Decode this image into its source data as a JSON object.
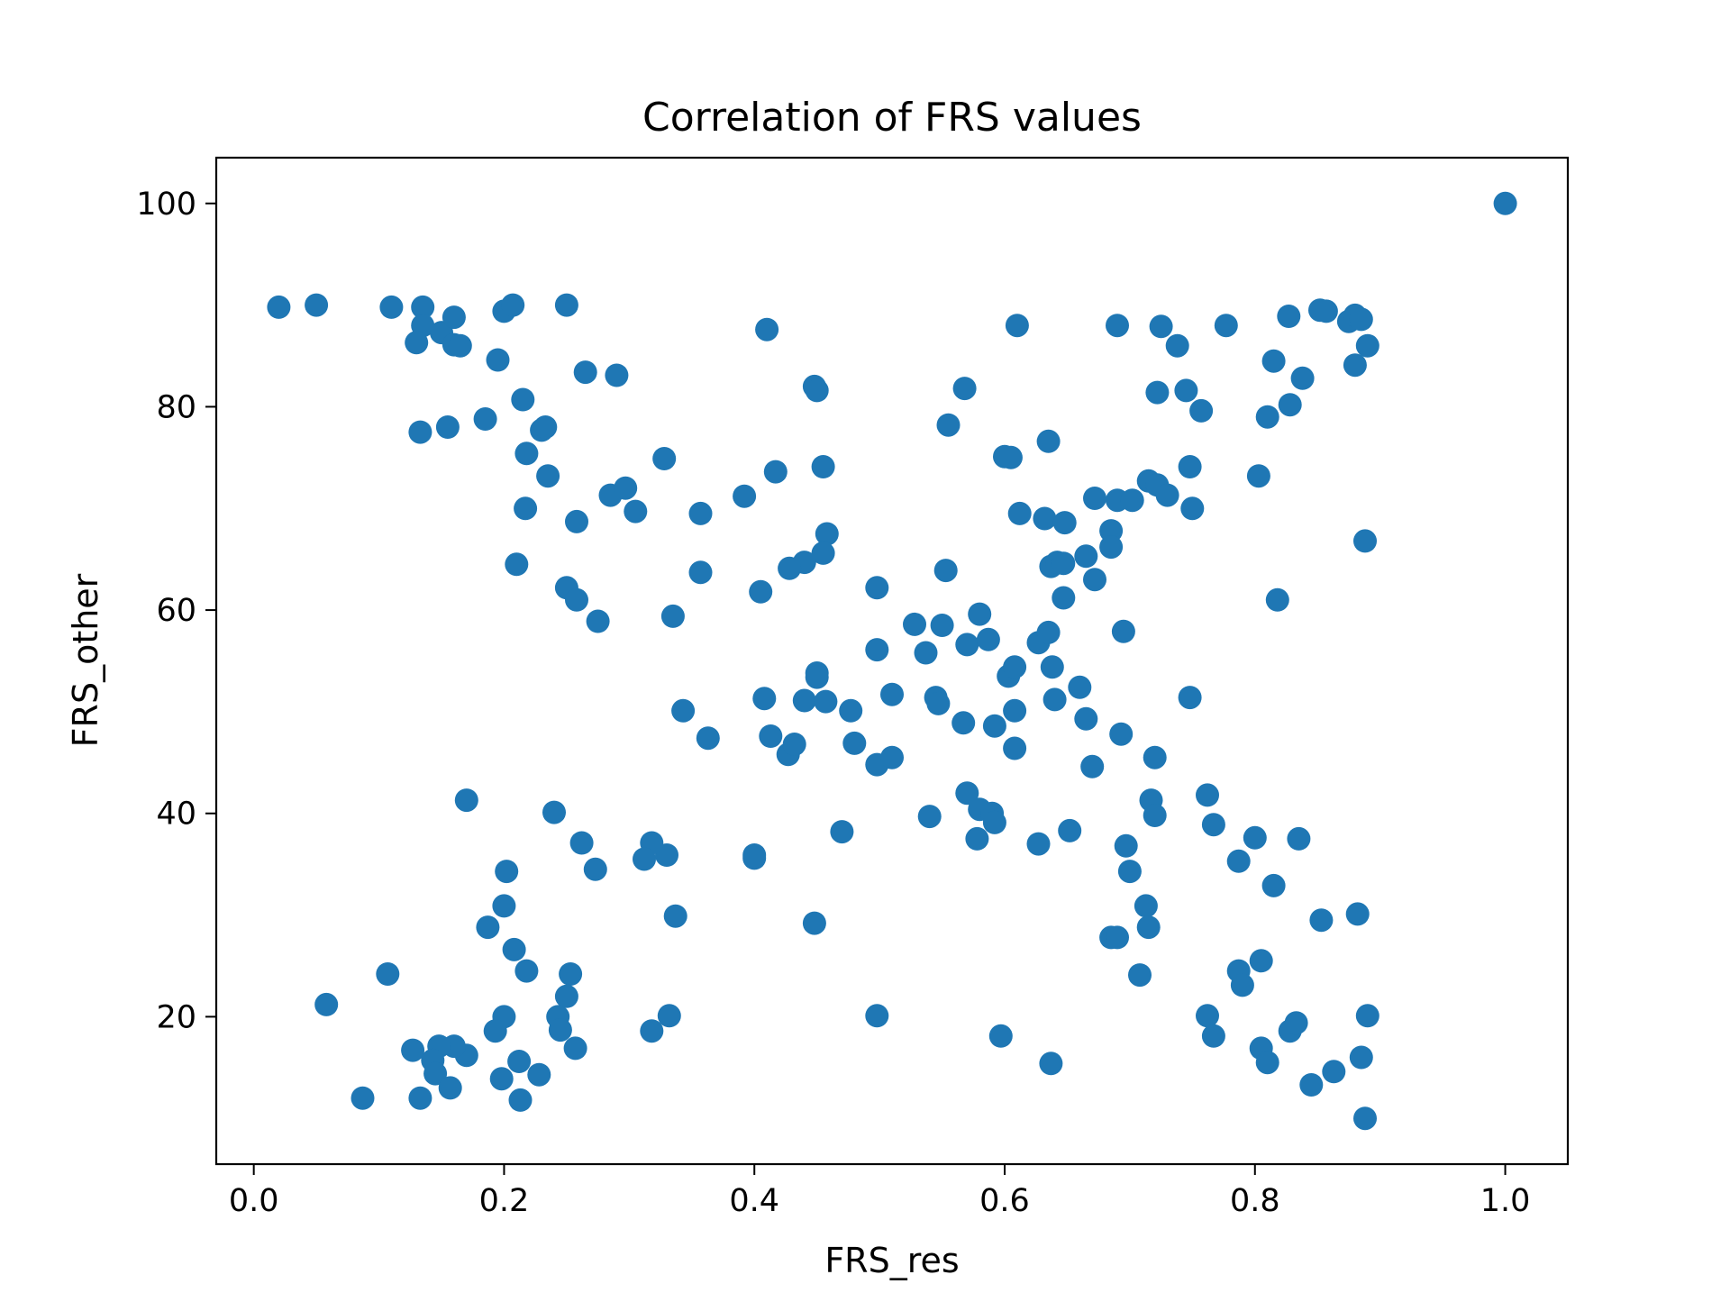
{
  "chart_data": {
    "type": "scatter",
    "title": "Correlation of FRS values",
    "xlabel": "FRS_res",
    "ylabel": "FRS_other",
    "xlim": [
      -0.03,
      1.05
    ],
    "ylim": [
      5.5,
      104.5
    ],
    "xticks": [
      "0.0",
      "0.2",
      "0.4",
      "0.6",
      "0.8",
      "1.0"
    ],
    "xtick_values": [
      0.0,
      0.2,
      0.4,
      0.6,
      0.8,
      1.0
    ],
    "yticks": [
      "20",
      "40",
      "60",
      "80",
      "100"
    ],
    "ytick_values": [
      20,
      40,
      60,
      80,
      100
    ],
    "grid": false,
    "legend": false,
    "marker_color": "#1f77b4",
    "points": [
      [
        0.02,
        89.8
      ],
      [
        0.05,
        90.0
      ],
      [
        0.11,
        89.8
      ],
      [
        0.135,
        89.8
      ],
      [
        0.135,
        88.0
      ],
      [
        0.15,
        87.3
      ],
      [
        0.16,
        88.8
      ],
      [
        0.13,
        86.3
      ],
      [
        0.16,
        86.1
      ],
      [
        0.165,
        86.0
      ],
      [
        0.2,
        89.4
      ],
      [
        0.207,
        90.0
      ],
      [
        0.25,
        90.0
      ],
      [
        0.195,
        84.6
      ],
      [
        0.265,
        83.4
      ],
      [
        0.29,
        83.1
      ],
      [
        0.133,
        77.5
      ],
      [
        0.155,
        78.0
      ],
      [
        0.185,
        78.8
      ],
      [
        0.215,
        80.7
      ],
      [
        0.23,
        77.7
      ],
      [
        0.233,
        78.0
      ],
      [
        0.218,
        75.4
      ],
      [
        0.235,
        73.2
      ],
      [
        0.217,
        70.0
      ],
      [
        0.21,
        64.5
      ],
      [
        0.258,
        68.7
      ],
      [
        0.285,
        71.3
      ],
      [
        0.297,
        72.0
      ],
      [
        0.305,
        69.7
      ],
      [
        0.328,
        74.9
      ],
      [
        0.25,
        62.2
      ],
      [
        0.258,
        61.0
      ],
      [
        0.275,
        58.9
      ],
      [
        0.335,
        59.4
      ],
      [
        0.357,
        69.5
      ],
      [
        0.357,
        63.7
      ],
      [
        0.392,
        71.2
      ],
      [
        0.417,
        73.6
      ],
      [
        0.41,
        87.6
      ],
      [
        0.448,
        82.0
      ],
      [
        0.45,
        81.6
      ],
      [
        0.455,
        74.1
      ],
      [
        0.458,
        67.5
      ],
      [
        0.455,
        65.6
      ],
      [
        0.44,
        64.7
      ],
      [
        0.428,
        64.1
      ],
      [
        0.405,
        61.8
      ],
      [
        0.343,
        50.1
      ],
      [
        0.363,
        47.4
      ],
      [
        0.408,
        51.3
      ],
      [
        0.413,
        47.6
      ],
      [
        0.427,
        45.8
      ],
      [
        0.432,
        46.8
      ],
      [
        0.44,
        51.1
      ],
      [
        0.45,
        53.8
      ],
      [
        0.45,
        53.4
      ],
      [
        0.457,
        51.0
      ],
      [
        0.477,
        50.1
      ],
      [
        0.48,
        46.9
      ],
      [
        0.498,
        62.2
      ],
      [
        0.498,
        56.1
      ],
      [
        0.51,
        51.7
      ],
      [
        0.498,
        44.8
      ],
      [
        0.51,
        45.5
      ],
      [
        0.528,
        58.6
      ],
      [
        0.537,
        55.8
      ],
      [
        0.545,
        51.4
      ],
      [
        0.547,
        50.8
      ],
      [
        0.55,
        58.5
      ],
      [
        0.553,
        63.9
      ],
      [
        0.555,
        78.2
      ],
      [
        0.568,
        81.8
      ],
      [
        0.6,
        75.1
      ],
      [
        0.605,
        75.0
      ],
      [
        0.61,
        88.0
      ],
      [
        0.612,
        69.5
      ],
      [
        0.632,
        69.0
      ],
      [
        0.635,
        76.6
      ],
      [
        0.648,
        68.6
      ],
      [
        0.57,
        56.6
      ],
      [
        0.58,
        59.6
      ],
      [
        0.587,
        57.1
      ],
      [
        0.567,
        48.9
      ],
      [
        0.592,
        48.6
      ],
      [
        0.608,
        46.4
      ],
      [
        0.608,
        50.1
      ],
      [
        0.603,
        53.5
      ],
      [
        0.608,
        54.4
      ],
      [
        0.627,
        56.8
      ],
      [
        0.635,
        57.8
      ],
      [
        0.637,
        64.3
      ],
      [
        0.642,
        64.7
      ],
      [
        0.647,
        64.6
      ],
      [
        0.647,
        61.2
      ],
      [
        0.638,
        54.4
      ],
      [
        0.64,
        51.2
      ],
      [
        0.66,
        52.4
      ],
      [
        0.665,
        49.3
      ],
      [
        0.67,
        44.6
      ],
      [
        0.665,
        65.3
      ],
      [
        0.672,
        63.0
      ],
      [
        0.672,
        71.0
      ],
      [
        0.685,
        67.8
      ],
      [
        0.685,
        66.2
      ],
      [
        0.69,
        70.8
      ],
      [
        0.702,
        70.8
      ],
      [
        0.715,
        72.7
      ],
      [
        0.722,
        72.3
      ],
      [
        0.73,
        71.3
      ],
      [
        0.69,
        88.0
      ],
      [
        0.725,
        87.9
      ],
      [
        0.738,
        86.0
      ],
      [
        0.722,
        81.4
      ],
      [
        0.745,
        81.6
      ],
      [
        0.757,
        79.6
      ],
      [
        0.748,
        74.1
      ],
      [
        0.75,
        70.0
      ],
      [
        0.695,
        57.9
      ],
      [
        0.748,
        51.4
      ],
      [
        0.693,
        47.8
      ],
      [
        0.72,
        45.5
      ],
      [
        0.717,
        41.3
      ],
      [
        0.72,
        39.8
      ],
      [
        0.697,
        36.8
      ],
      [
        0.7,
        34.3
      ],
      [
        0.713,
        30.9
      ],
      [
        0.715,
        28.8
      ],
      [
        0.685,
        27.8
      ],
      [
        0.69,
        27.8
      ],
      [
        0.708,
        24.1
      ],
      [
        0.777,
        88.0
      ],
      [
        0.803,
        73.2
      ],
      [
        0.81,
        79.0
      ],
      [
        0.815,
        84.5
      ],
      [
        0.827,
        88.9
      ],
      [
        0.828,
        80.2
      ],
      [
        0.838,
        82.8
      ],
      [
        0.852,
        89.5
      ],
      [
        0.857,
        89.4
      ],
      [
        0.875,
        88.4
      ],
      [
        0.88,
        89.0
      ],
      [
        0.885,
        88.6
      ],
      [
        0.88,
        84.1
      ],
      [
        0.89,
        86.0
      ],
      [
        0.888,
        66.8
      ],
      [
        0.818,
        61.0
      ],
      [
        0.762,
        41.8
      ],
      [
        0.767,
        38.9
      ],
      [
        0.8,
        37.6
      ],
      [
        0.787,
        35.3
      ],
      [
        0.815,
        32.9
      ],
      [
        0.835,
        37.5
      ],
      [
        0.853,
        29.5
      ],
      [
        0.882,
        30.1
      ],
      [
        0.805,
        25.5
      ],
      [
        0.787,
        24.5
      ],
      [
        0.79,
        23.1
      ],
      [
        0.762,
        20.1
      ],
      [
        0.767,
        18.1
      ],
      [
        0.805,
        16.9
      ],
      [
        0.81,
        15.5
      ],
      [
        0.828,
        18.6
      ],
      [
        0.833,
        19.4
      ],
      [
        0.845,
        13.3
      ],
      [
        0.863,
        14.6
      ],
      [
        0.885,
        16.0
      ],
      [
        0.89,
        20.1
      ],
      [
        0.888,
        10.0
      ],
      [
        1.0,
        100.0
      ],
      [
        0.57,
        42.0
      ],
      [
        0.58,
        40.4
      ],
      [
        0.59,
        40.0
      ],
      [
        0.592,
        39.1
      ],
      [
        0.578,
        37.5
      ],
      [
        0.54,
        39.7
      ],
      [
        0.47,
        38.2
      ],
      [
        0.498,
        20.1
      ],
      [
        0.448,
        29.2
      ],
      [
        0.597,
        18.1
      ],
      [
        0.627,
        37.0
      ],
      [
        0.652,
        38.3
      ],
      [
        0.637,
        15.4
      ],
      [
        0.4,
        35.9
      ],
      [
        0.4,
        35.6
      ],
      [
        0.337,
        29.9
      ],
      [
        0.33,
        35.9
      ],
      [
        0.318,
        37.1
      ],
      [
        0.312,
        35.5
      ],
      [
        0.318,
        18.6
      ],
      [
        0.332,
        20.1
      ],
      [
        0.24,
        40.1
      ],
      [
        0.262,
        37.1
      ],
      [
        0.273,
        34.5
      ],
      [
        0.17,
        41.3
      ],
      [
        0.202,
        34.3
      ],
      [
        0.2,
        30.9
      ],
      [
        0.187,
        28.8
      ],
      [
        0.208,
        26.6
      ],
      [
        0.218,
        24.5
      ],
      [
        0.253,
        24.2
      ],
      [
        0.25,
        22.0
      ],
      [
        0.243,
        20.0
      ],
      [
        0.245,
        18.7
      ],
      [
        0.257,
        16.9
      ],
      [
        0.2,
        20.0
      ],
      [
        0.193,
        18.6
      ],
      [
        0.198,
        13.9
      ],
      [
        0.212,
        15.6
      ],
      [
        0.213,
        11.8
      ],
      [
        0.228,
        14.3
      ],
      [
        0.17,
        16.2
      ],
      [
        0.16,
        17.1
      ],
      [
        0.148,
        17.1
      ],
      [
        0.143,
        15.7
      ],
      [
        0.145,
        14.4
      ],
      [
        0.157,
        13.0
      ],
      [
        0.127,
        16.7
      ],
      [
        0.133,
        12.0
      ],
      [
        0.087,
        12.0
      ],
      [
        0.107,
        24.2
      ],
      [
        0.058,
        21.2
      ]
    ]
  }
}
